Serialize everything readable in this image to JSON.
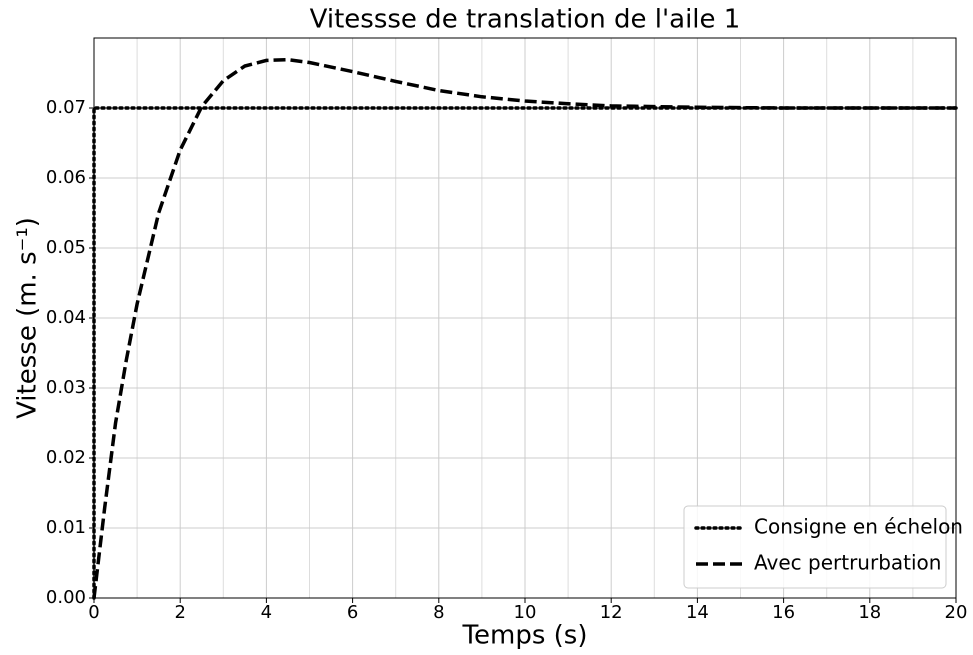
{
  "chart_data": {
    "type": "line",
    "title": "Vitessse de translation de l'aile 1",
    "xlabel": "Temps (s)",
    "ylabel": "Vitesse (m. s⁻¹)",
    "xlim": [
      0,
      20
    ],
    "ylim": [
      0,
      0.08
    ],
    "xticks": [
      0,
      2,
      4,
      6,
      8,
      10,
      12,
      14,
      16,
      18,
      20
    ],
    "x_minor_ticks": [
      1,
      3,
      5,
      7,
      9,
      11,
      13,
      15,
      17,
      19
    ],
    "yticks": [
      {
        "value": 0,
        "label": "0.00"
      },
      {
        "value": 0.01,
        "label": "0.01"
      },
      {
        "value": 0.02,
        "label": "0.02"
      },
      {
        "value": 0.03,
        "label": "0.03"
      },
      {
        "value": 0.04,
        "label": "0.04"
      },
      {
        "value": 0.05,
        "label": "0.05"
      },
      {
        "value": 0.06,
        "label": "0.06"
      },
      {
        "value": 0.07,
        "label": "0.07"
      }
    ],
    "grid": true,
    "legend": "lower right",
    "series": [
      {
        "name": "Consigne en échelon",
        "color": "#000000",
        "dash": "dotted",
        "x": [
          0,
          0,
          20
        ],
        "values": [
          0,
          0.07,
          0.07
        ]
      },
      {
        "name": "Avec pertrurbation",
        "color": "#000000",
        "dash": "dashed",
        "x": [
          0,
          0.25,
          0.5,
          0.75,
          1,
          1.5,
          2,
          2.5,
          3,
          3.5,
          4,
          4.5,
          5,
          6,
          7,
          8,
          9,
          10,
          11,
          12,
          14,
          16,
          18,
          20
        ],
        "values": [
          0,
          0.013,
          0.025,
          0.034,
          0.042,
          0.055,
          0.064,
          0.0702,
          0.0739,
          0.076,
          0.0768,
          0.0769,
          0.0765,
          0.0752,
          0.0738,
          0.0725,
          0.0716,
          0.071,
          0.0706,
          0.0703,
          0.0701,
          0.07,
          0.07,
          0.07
        ]
      }
    ]
  }
}
